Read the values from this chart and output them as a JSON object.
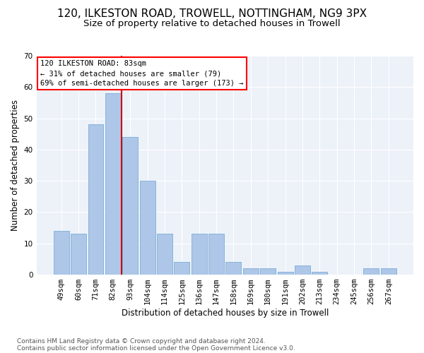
{
  "title": "120, ILKESTON ROAD, TROWELL, NOTTINGHAM, NG9 3PX",
  "subtitle": "Size of property relative to detached houses in Trowell",
  "xlabel": "Distribution of detached houses by size in Trowell",
  "ylabel": "Number of detached properties",
  "categories": [
    "49sqm",
    "60sqm",
    "71sqm",
    "82sqm",
    "93sqm",
    "104sqm",
    "114sqm",
    "125sqm",
    "136sqm",
    "147sqm",
    "158sqm",
    "169sqm",
    "180sqm",
    "191sqm",
    "202sqm",
    "213sqm",
    "234sqm",
    "245sqm",
    "256sqm",
    "267sqm"
  ],
  "values": [
    14,
    13,
    48,
    58,
    44,
    30,
    13,
    4,
    13,
    13,
    4,
    2,
    2,
    1,
    3,
    1,
    0,
    0,
    2,
    2
  ],
  "bar_color": "#aec6e8",
  "bar_edge_color": "#7aafd4",
  "annotation_title": "120 ILKESTON ROAD: 83sqm",
  "annotation_line1": "← 31% of detached houses are smaller (79)",
  "annotation_line2": "69% of semi-detached houses are larger (173) →",
  "vline_color": "#cc0000",
  "background_color": "#edf2f9",
  "footer_line1": "Contains HM Land Registry data © Crown copyright and database right 2024.",
  "footer_line2": "Contains public sector information licensed under the Open Government Licence v3.0.",
  "ylim": [
    0,
    70
  ],
  "title_fontsize": 11,
  "subtitle_fontsize": 9.5,
  "axis_label_fontsize": 8.5,
  "tick_fontsize": 7.5,
  "annotation_fontsize": 7.5,
  "footer_fontsize": 6.5,
  "vline_bar_index": 3
}
